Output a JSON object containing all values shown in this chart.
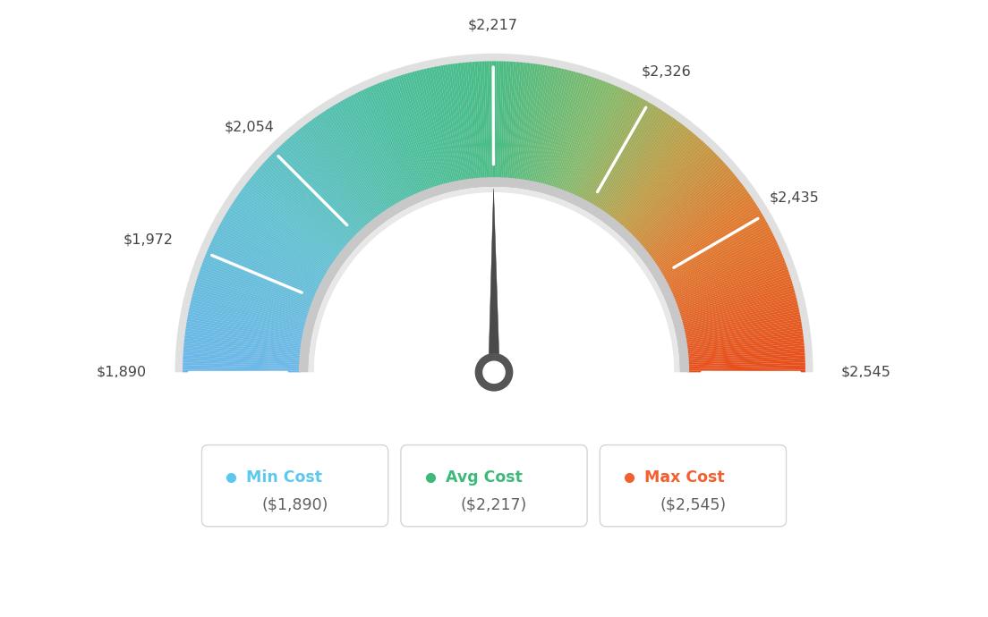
{
  "min_val": 1890,
  "max_val": 2545,
  "avg_val": 2217,
  "tick_labels": [
    "$1,890",
    "$1,972",
    "$2,054",
    "$2,217",
    "$2,326",
    "$2,435",
    "$2,545"
  ],
  "tick_values": [
    1890,
    1972,
    2054,
    2217,
    2326,
    2435,
    2545
  ],
  "legend_labels": [
    "Min Cost",
    "Avg Cost",
    "Max Cost"
  ],
  "legend_values": [
    "($1,890)",
    "($2,217)",
    "($2,545)"
  ],
  "legend_colors": [
    "#5bc8f0",
    "#3dba7a",
    "#f26030"
  ],
  "bg_color": "#ffffff",
  "color_stops": [
    [
      0.0,
      [
        0.42,
        0.72,
        0.92
      ]
    ],
    [
      0.2,
      [
        0.38,
        0.76,
        0.82
      ]
    ],
    [
      0.38,
      [
        0.3,
        0.75,
        0.62
      ]
    ],
    [
      0.5,
      [
        0.28,
        0.74,
        0.52
      ]
    ],
    [
      0.62,
      [
        0.52,
        0.73,
        0.42
      ]
    ],
    [
      0.72,
      [
        0.75,
        0.62,
        0.28
      ]
    ],
    [
      0.82,
      [
        0.88,
        0.48,
        0.18
      ]
    ],
    [
      1.0,
      [
        0.91,
        0.3,
        0.1
      ]
    ]
  ]
}
